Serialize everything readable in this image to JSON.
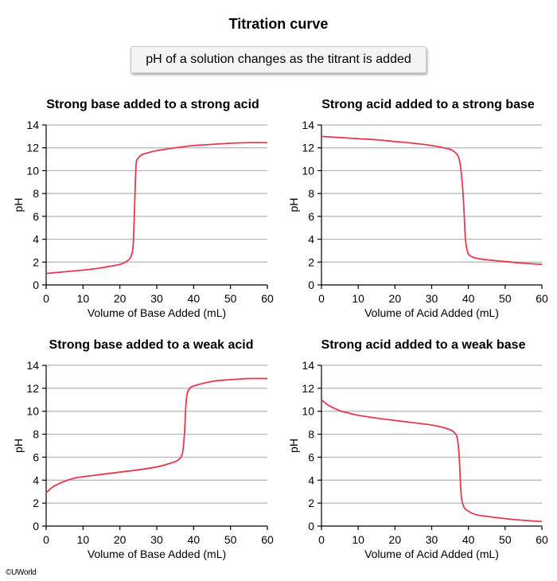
{
  "header": {
    "title": "Titration curve",
    "subtitle": "pH of a solution changes as the titrant is added"
  },
  "footer": {
    "credit": "©UWorld"
  },
  "colors": {
    "curve": "#e8384f",
    "grid": "#b3b3b3",
    "axis": "#000000",
    "subtitle_bg": "#f3f4f6"
  },
  "chart_data": [
    {
      "type": "line",
      "title": "Strong base added to a strong acid",
      "xlabel": "Volume of Base Added (mL)",
      "ylabel": "pH",
      "xlim": [
        0,
        60
      ],
      "ylim": [
        0,
        14
      ],
      "xticks": [
        0,
        10,
        20,
        30,
        40,
        50,
        60
      ],
      "yticks": [
        0,
        2,
        4,
        6,
        8,
        10,
        12,
        14
      ],
      "grid": "horizontal",
      "series": [
        {
          "name": "pH",
          "x": [
            0,
            5,
            10,
            15,
            20,
            22,
            23,
            23.6,
            24,
            24.4,
            25,
            26,
            28,
            30,
            35,
            40,
            45,
            50,
            55,
            60
          ],
          "y": [
            1.0,
            1.15,
            1.3,
            1.5,
            1.8,
            2.1,
            2.5,
            3.5,
            7.0,
            10.5,
            11.1,
            11.4,
            11.6,
            11.75,
            12.0,
            12.2,
            12.3,
            12.4,
            12.45,
            12.45
          ]
        }
      ]
    },
    {
      "type": "line",
      "title": "Strong acid added to a strong base",
      "xlabel": "Volume of Acid Added (mL)",
      "ylabel": "pH",
      "xlim": [
        0,
        60
      ],
      "ylim": [
        0,
        14
      ],
      "xticks": [
        0,
        10,
        20,
        30,
        40,
        50,
        60
      ],
      "yticks": [
        0,
        2,
        4,
        6,
        8,
        10,
        12,
        14
      ],
      "grid": "horizontal",
      "series": [
        {
          "name": "pH",
          "x": [
            0,
            5,
            10,
            15,
            20,
            25,
            30,
            34,
            36,
            37.5,
            38.3,
            38.8,
            39.2,
            39.7,
            40.3,
            42,
            45,
            50,
            55,
            60
          ],
          "y": [
            13.0,
            12.9,
            12.8,
            12.7,
            12.55,
            12.4,
            12.2,
            11.95,
            11.7,
            11.0,
            9.0,
            6.5,
            4.0,
            3.0,
            2.6,
            2.35,
            2.2,
            2.05,
            1.9,
            1.8
          ]
        }
      ]
    },
    {
      "type": "line",
      "title": "Strong base added to a weak acid",
      "xlabel": "Volume of Base Added (mL)",
      "ylabel": "pH",
      "xlim": [
        0,
        60
      ],
      "ylim": [
        0,
        14
      ],
      "xticks": [
        0,
        10,
        20,
        30,
        40,
        50,
        60
      ],
      "yticks": [
        0,
        2,
        4,
        6,
        8,
        10,
        12,
        14
      ],
      "grid": "horizontal",
      "series": [
        {
          "name": "pH",
          "x": [
            0,
            2,
            5,
            8,
            10,
            15,
            20,
            25,
            30,
            34,
            36,
            37,
            37.5,
            37.9,
            38.3,
            39,
            40,
            45,
            50,
            55,
            60
          ],
          "y": [
            2.9,
            3.45,
            3.9,
            4.2,
            4.3,
            4.5,
            4.7,
            4.9,
            5.15,
            5.5,
            5.8,
            6.4,
            8.0,
            10.5,
            11.6,
            12.0,
            12.2,
            12.6,
            12.75,
            12.85,
            12.85
          ]
        }
      ]
    },
    {
      "type": "line",
      "title": "Strong acid added to a weak base",
      "xlabel": "Volume of Acid Added (mL)",
      "ylabel": "pH",
      "xlim": [
        0,
        60
      ],
      "ylim": [
        0,
        14
      ],
      "xticks": [
        0,
        10,
        20,
        30,
        40,
        50,
        60
      ],
      "yticks": [
        0,
        2,
        4,
        6,
        8,
        10,
        12,
        14
      ],
      "grid": "horizontal",
      "series": [
        {
          "name": "pH",
          "x": [
            0,
            2,
            5,
            8,
            10,
            15,
            20,
            25,
            30,
            34,
            36,
            37,
            37.5,
            37.8,
            38.1,
            38.6,
            39.5,
            42,
            45,
            50,
            55,
            60
          ],
          "y": [
            11.0,
            10.5,
            10.05,
            9.8,
            9.65,
            9.4,
            9.2,
            9.0,
            8.8,
            8.5,
            8.2,
            7.6,
            6.0,
            4.0,
            2.5,
            1.8,
            1.4,
            1.0,
            0.85,
            0.65,
            0.5,
            0.4
          ]
        }
      ]
    }
  ]
}
